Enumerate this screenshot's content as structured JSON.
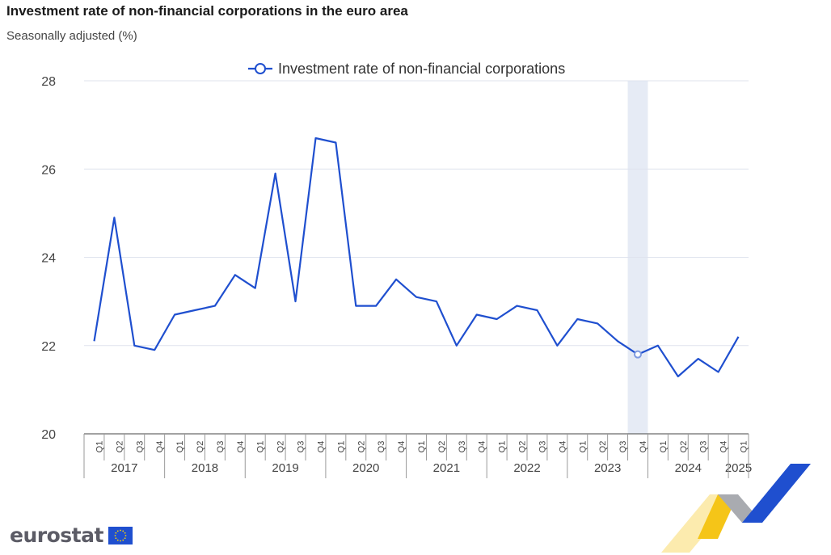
{
  "title": "Investment rate of non-financial corporations in the euro area",
  "subtitle": "Seasonally adjusted (%)",
  "logo": {
    "text": "eurostat",
    "flag_icon": "eu-flag-icon"
  },
  "colors": {
    "line": "#1f4fcf",
    "grid": "#dfe3ee",
    "highlight": "#e6ebf5",
    "axis": "#444444"
  },
  "chart_data": {
    "type": "line",
    "title": "Investment rate of non-financial corporations in the euro area",
    "subtitle": "Seasonally adjusted (%)",
    "legend": {
      "position": "top-center",
      "entries": [
        "Investment rate of non-financial corporations"
      ]
    },
    "ylim": [
      20,
      28
    ],
    "yticks": [
      20,
      22,
      24,
      26,
      28
    ],
    "grid": true,
    "quarters": [
      "Q1",
      "Q2",
      "Q3",
      "Q4",
      "Q1",
      "Q2",
      "Q3",
      "Q4",
      "Q1",
      "Q2",
      "Q3",
      "Q4",
      "Q1",
      "Q2",
      "Q3",
      "Q4",
      "Q1",
      "Q2",
      "Q3",
      "Q4",
      "Q1",
      "Q2",
      "Q3",
      "Q4",
      "Q1",
      "Q2",
      "Q3",
      "Q4",
      "Q1",
      "Q2",
      "Q3",
      "Q4",
      "Q1"
    ],
    "years": [
      {
        "label": "2017",
        "span": 4
      },
      {
        "label": "2018",
        "span": 4
      },
      {
        "label": "2019",
        "span": 4
      },
      {
        "label": "2020",
        "span": 4
      },
      {
        "label": "2021",
        "span": 4
      },
      {
        "label": "2022",
        "span": 4
      },
      {
        "label": "2023",
        "span": 4
      },
      {
        "label": "2024",
        "span": 4
      },
      {
        "label": "2025",
        "span": 1
      }
    ],
    "highlight_period": "2023-Q4",
    "series": [
      {
        "name": "Investment rate of non-financial corporations",
        "values": [
          22.1,
          24.9,
          22.0,
          21.9,
          22.7,
          22.8,
          22.9,
          23.6,
          23.3,
          25.9,
          23.0,
          26.7,
          26.6,
          22.9,
          22.9,
          23.5,
          23.1,
          23.0,
          22.0,
          22.7,
          22.6,
          22.9,
          22.8,
          22.0,
          22.6,
          22.5,
          22.1,
          21.8,
          22.0,
          21.3,
          21.7,
          21.4,
          22.2
        ]
      }
    ]
  }
}
